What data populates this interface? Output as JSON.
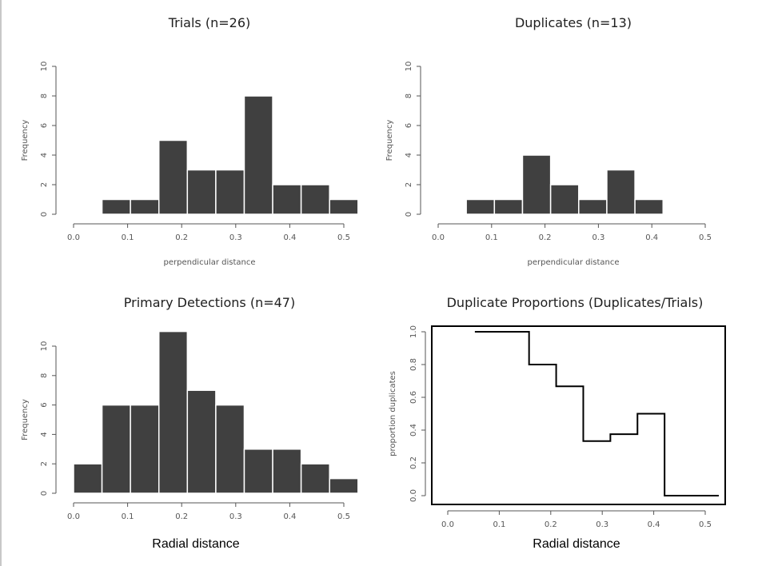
{
  "chart_data": [
    {
      "type": "bar",
      "title": "Trials (n=26)",
      "xlabel": "perpendicular distance",
      "ylabel": "Frequency",
      "xlim": [
        0,
        0.5
      ],
      "ylim": [
        0,
        10
      ],
      "xticks": [
        "0.0",
        "0.1",
        "0.2",
        "0.3",
        "0.4",
        "0.5"
      ],
      "yticks": [
        "0",
        "2",
        "4",
        "6",
        "8",
        "10"
      ],
      "bin_edges": [
        0.0,
        0.05263,
        0.10526,
        0.15789,
        0.21053,
        0.26316,
        0.31579,
        0.36842,
        0.42105,
        0.47368,
        0.52632
      ],
      "values": [
        0,
        1,
        1,
        5,
        3,
        3,
        8,
        2,
        2,
        1
      ],
      "color": "#404040"
    },
    {
      "type": "bar",
      "title": "Duplicates (n=13)",
      "xlabel": "perpendicular distance",
      "ylabel": "Frequency",
      "xlim": [
        0,
        0.5
      ],
      "ylim": [
        0,
        10
      ],
      "xticks": [
        "0.0",
        "0.1",
        "0.2",
        "0.3",
        "0.4",
        "0.5"
      ],
      "yticks": [
        "0",
        "2",
        "4",
        "6",
        "8",
        "10"
      ],
      "bin_edges": [
        0.0,
        0.05263,
        0.10526,
        0.15789,
        0.21053,
        0.26316,
        0.31579,
        0.36842,
        0.42105
      ],
      "values": [
        0,
        1,
        1,
        4,
        2,
        1,
        3,
        1
      ],
      "color": "#404040"
    },
    {
      "type": "bar",
      "title": "Primary Detections (n=47)",
      "xlabel": "Radial distance",
      "ylabel": "Frequency",
      "xlim": [
        0,
        0.5
      ],
      "ylim": [
        0,
        10
      ],
      "xticks": [
        "0.0",
        "0.1",
        "0.2",
        "0.3",
        "0.4",
        "0.5"
      ],
      "yticks": [
        "0",
        "2",
        "4",
        "6",
        "8",
        "10"
      ],
      "bin_edges": [
        0.0,
        0.05263,
        0.10526,
        0.15789,
        0.21053,
        0.26316,
        0.31579,
        0.36842,
        0.42105,
        0.47368,
        0.52632
      ],
      "values": [
        2,
        6,
        6,
        11,
        7,
        6,
        3,
        3,
        2,
        1
      ],
      "color": "#404040"
    },
    {
      "type": "line",
      "step": true,
      "title": "Duplicate Proportions (Duplicates/Trials)",
      "xlabel": "Radial distance",
      "ylabel": "proportion duplicates",
      "xlim": [
        0,
        0.5
      ],
      "ylim": [
        0,
        1
      ],
      "xticks": [
        "0.0",
        "0.1",
        "0.2",
        "0.3",
        "0.4",
        "0.5"
      ],
      "yticks": [
        "0.0",
        "0.2",
        "0.4",
        "0.6",
        "0.8",
        "1.0"
      ],
      "x": [
        0.05263,
        0.15789,
        0.21053,
        0.26316,
        0.31579,
        0.36842,
        0.42105,
        0.52632
      ],
      "y": [
        1.0,
        0.8,
        0.667,
        0.333,
        0.375,
        0.5,
        0.0,
        0.0
      ],
      "color": "#000000"
    }
  ]
}
